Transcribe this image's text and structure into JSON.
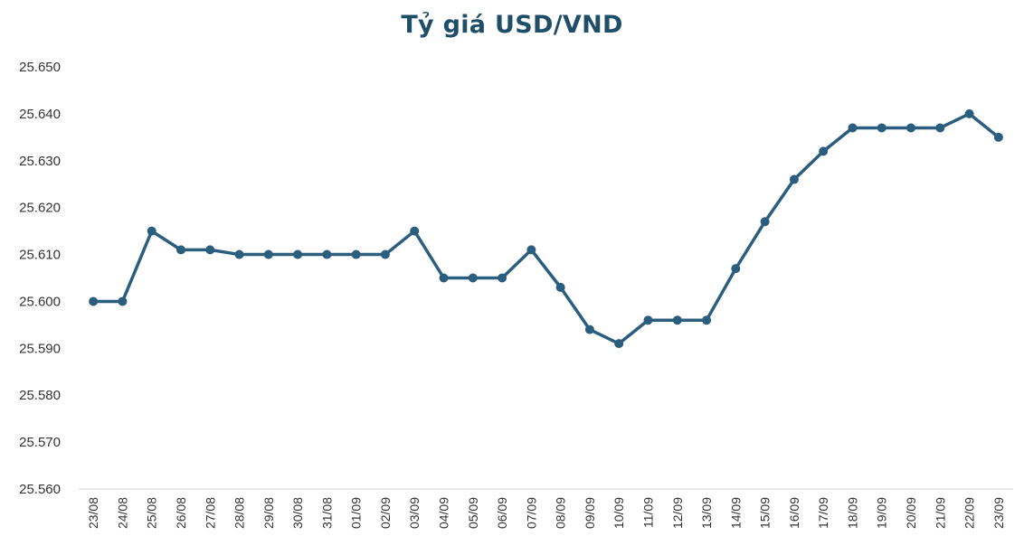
{
  "chart_data": {
    "type": "line",
    "title": "Tỷ giá USD/VND",
    "xlabel": "",
    "ylabel": "",
    "categories": [
      "23/08",
      "24/08",
      "25/08",
      "26/08",
      "27/08",
      "28/08",
      "29/08",
      "30/08",
      "31/08",
      "01/09",
      "02/09",
      "03/09",
      "04/09",
      "05/09",
      "06/09",
      "07/09",
      "08/09",
      "09/09",
      "10/09",
      "11/09",
      "12/09",
      "13/09",
      "14/09",
      "15/09",
      "16/09",
      "17/09",
      "18/09",
      "19/09",
      "20/09",
      "21/09",
      "22/09",
      "23/09"
    ],
    "series": [
      {
        "values": [
          25600,
          25600,
          25615,
          25611,
          25611,
          25610,
          25610,
          25610,
          25610,
          25610,
          25610,
          25615,
          25605,
          25605,
          25605,
          25611,
          25603,
          25594,
          25591,
          25596,
          25596,
          25596,
          25607,
          25617,
          25626,
          25632,
          25637,
          25637,
          25637,
          25637,
          25640,
          25635
        ]
      }
    ],
    "ylim": [
      25560,
      25650
    ],
    "yticks": [
      25560,
      25570,
      25580,
      25590,
      25600,
      25610,
      25620,
      25630,
      25640,
      25650
    ],
    "ytick_labels": [
      "25.560",
      "25.570",
      "25.580",
      "25.590",
      "25.600",
      "25.610",
      "25.620",
      "25.630",
      "25.640",
      "25.650"
    ],
    "grid": false,
    "legend": "none",
    "line_color": "#2b5e7e",
    "title_color": "#1f4e69"
  }
}
